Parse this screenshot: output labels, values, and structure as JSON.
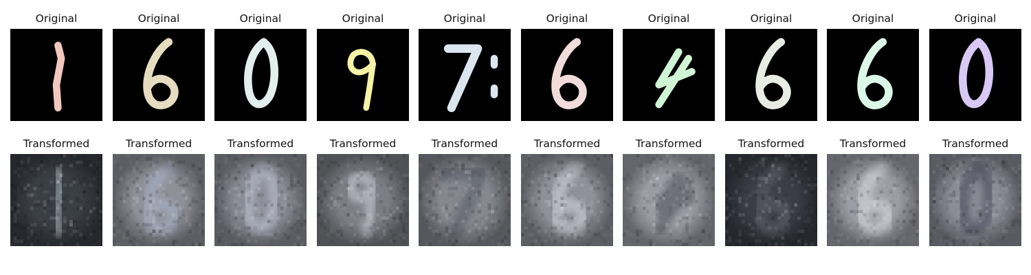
{
  "figure": {
    "rows": [
      {
        "id": "original",
        "title": "Original",
        "images": [
          {
            "digit": "1",
            "color": "#f2c7bd",
            "bg": "#000000"
          },
          {
            "digit": "6",
            "color": "#e6dcc0",
            "bg": "#000000"
          },
          {
            "digit": "0",
            "color": "#e3efec",
            "bg": "#000000"
          },
          {
            "digit": "9",
            "color": "#f6f3a6",
            "bg": "#000000"
          },
          {
            "digit": "7:",
            "color": "#dce6f0",
            "bg": "#000000"
          },
          {
            "digit": "6",
            "color": "#f2dcdb",
            "bg": "#000000"
          },
          {
            "digit": "4",
            "color": "#cff5d4",
            "bg": "#000000"
          },
          {
            "digit": "6",
            "color": "#e8ede4",
            "bg": "#000000"
          },
          {
            "digit": "6",
            "color": "#dbf7e8",
            "bg": "#000000"
          },
          {
            "digit": "0",
            "color": "#d8c8f5",
            "bg": "#000000"
          }
        ]
      },
      {
        "id": "transformed",
        "title": "Transformed",
        "images": [
          {
            "digit": "1",
            "color": "#7d858c",
            "bg": "#3a3e45"
          },
          {
            "digit": "6",
            "color": "#9ea5b5",
            "bg": "#8e9098"
          },
          {
            "digit": "0",
            "color": "#a7acb8",
            "bg": "#8a8d96"
          },
          {
            "digit": "9",
            "color": "#b1b4bd",
            "bg": "#7c7e85"
          },
          {
            "digit": "7",
            "color": "#6a6e78",
            "bg": "#85888f"
          },
          {
            "digit": "6",
            "color": "#b7bac2",
            "bg": "#8e9199"
          },
          {
            "digit": "4",
            "color": "#6e7078",
            "bg": "#9a9ca4"
          },
          {
            "digit": "6",
            "color": "#50535c",
            "bg": "#3a3d46"
          },
          {
            "digit": "6",
            "color": "#c1c3c8",
            "bg": "#9c9ea6"
          },
          {
            "digit": "0",
            "color": "#606470",
            "bg": "#8a8c96"
          }
        ]
      }
    ]
  }
}
